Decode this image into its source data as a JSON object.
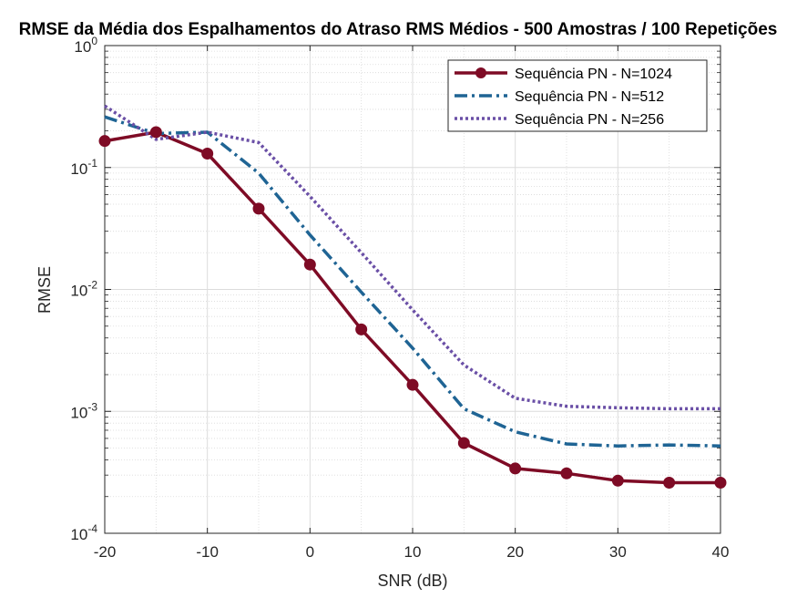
{
  "chart_data": {
    "type": "line",
    "title": "RMSE da Média dos Espalhamentos do Atraso RMS Médios - 500 Amostras / 100 Repetições",
    "xlabel": "SNR (dB)",
    "ylabel": "RMSE",
    "xlim": [
      -20,
      40
    ],
    "ylim": [
      0.0001,
      1
    ],
    "yscale": "log",
    "grid": true,
    "legend_position": "top-right",
    "x_ticks": [
      "-20",
      "-10",
      "0",
      "10",
      "20",
      "30",
      "40"
    ],
    "y_tick_base": "10",
    "y_tick_exponents": [
      "-4",
      "-3",
      "-2",
      "-1",
      "0"
    ],
    "series": [
      {
        "name": "Sequência PN - N=1024",
        "color": "#7e0b25",
        "style": "solid-marker",
        "x": [
          -20,
          -15,
          -10,
          -5,
          0,
          5,
          10,
          15,
          20,
          25,
          30,
          35,
          40
        ],
        "y": [
          0.165,
          0.195,
          0.13,
          0.046,
          0.016,
          0.0047,
          0.00165,
          0.00055,
          0.00034,
          0.00031,
          0.00027,
          0.00026,
          0.00026
        ]
      },
      {
        "name": "Sequência PN - N=512",
        "color": "#1f6494",
        "style": "dashdot",
        "x": [
          -20,
          -15,
          -10,
          -5,
          0,
          5,
          10,
          15,
          20,
          25,
          30,
          35,
          40
        ],
        "y": [
          0.26,
          0.19,
          0.195,
          0.09,
          0.028,
          0.0095,
          0.0033,
          0.00105,
          0.00068,
          0.00054,
          0.00052,
          0.00053,
          0.00052
        ]
      },
      {
        "name": "Sequência PN - N=256",
        "color": "#6a4fa6",
        "style": "dotted",
        "x": [
          -20,
          -15,
          -10,
          -5,
          0,
          5,
          10,
          15,
          20,
          25,
          30,
          35,
          40
        ],
        "y": [
          0.32,
          0.17,
          0.195,
          0.16,
          0.058,
          0.02,
          0.0068,
          0.0024,
          0.00128,
          0.0011,
          0.00107,
          0.00105,
          0.00105
        ]
      }
    ]
  }
}
